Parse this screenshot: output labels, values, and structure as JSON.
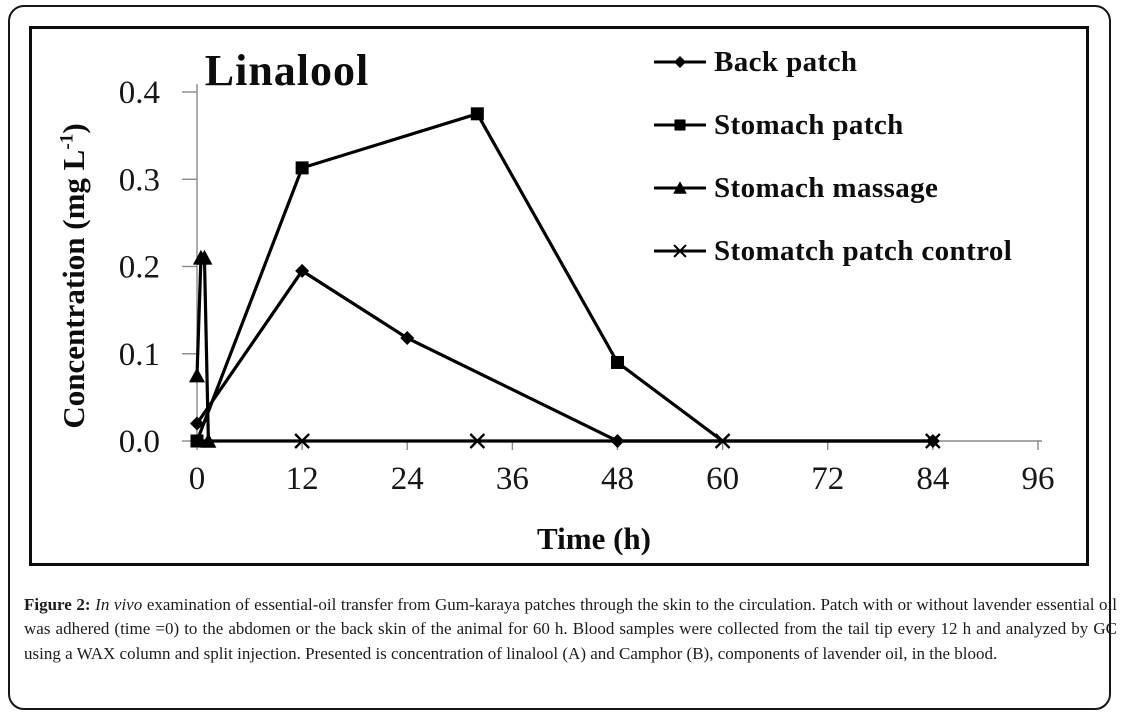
{
  "chart_data": {
    "type": "line",
    "title": "Linalool",
    "xlabel": "Time (h)",
    "ylabel": "Concentration (mg L⁻¹)",
    "ylabel_parts": [
      "Concentration (mg L",
      "-1",
      ")"
    ],
    "xlim": [
      0,
      96
    ],
    "ylim": [
      0.0,
      0.4
    ],
    "x_ticks": [
      0,
      12,
      24,
      36,
      48,
      60,
      72,
      84,
      96
    ],
    "y_ticks": [
      0.0,
      0.1,
      0.2,
      0.3,
      0.4
    ],
    "grid": false,
    "legend_position": "top-right",
    "line_color": "#000000",
    "axis_color": "#8a8a8a",
    "series": [
      {
        "name": "Back patch",
        "marker": "diamond",
        "points": [
          [
            0,
            0.02
          ],
          [
            12,
            0.195
          ],
          [
            24,
            0.118
          ],
          [
            48,
            0
          ],
          [
            84,
            0
          ]
        ]
      },
      {
        "name": "Stomach patch",
        "marker": "square",
        "points": [
          [
            0,
            0
          ],
          [
            12,
            0.313
          ],
          [
            32,
            0.375
          ],
          [
            48,
            0.09
          ],
          [
            60,
            0
          ]
        ],
        "marker_skip": [
          4
        ]
      },
      {
        "name": "Stomach massage",
        "marker": "triangle",
        "points": [
          [
            0,
            0.075
          ],
          [
            0.45,
            0.21
          ],
          [
            0.85,
            0.21
          ],
          [
            1.3,
            0
          ]
        ]
      },
      {
        "name": "Stomatch patch control",
        "marker": "x",
        "points": [
          [
            0,
            0
          ],
          [
            12,
            0
          ],
          [
            32,
            0
          ],
          [
            60,
            0
          ],
          [
            84,
            0
          ]
        ],
        "marker_skip": [
          0
        ]
      }
    ]
  },
  "figure": {
    "caption_label": "Figure 2:",
    "caption_italic": "In vivo",
    "caption_body": "examination of essential-oil transfer from Gum-karaya patches through the skin to the circulation. Patch with or without lavender essential oil was adhered (time =0) to the abdomen or the back skin of the animal for 60 h. Blood samples were collected from the tail tip every 12 h and analyzed by GC using a WAX column and split injection. Presented is concentration of linalool (A) and Camphor (B), components of lavender oil, in the blood."
  }
}
